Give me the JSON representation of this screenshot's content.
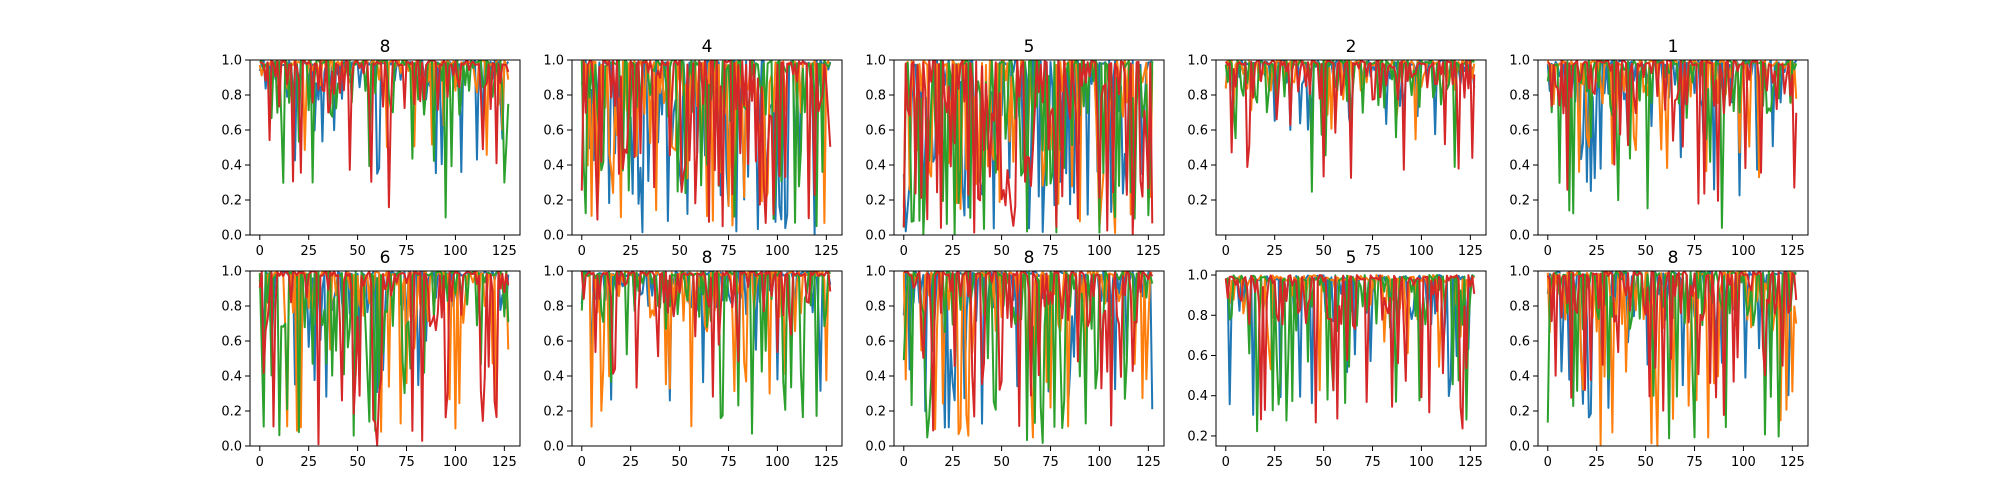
{
  "chart_data": {
    "type": "line",
    "layout": {
      "rows": 2,
      "cols": 5
    },
    "colors": [
      "#1f77b4",
      "#ff7f0e",
      "#2ca02c",
      "#d62728"
    ],
    "x_count": 128,
    "xlim": [
      -5,
      133
    ],
    "x_ticks": [
      0,
      25,
      50,
      75,
      100,
      125
    ],
    "panels": [
      {
        "title": "8",
        "ylim": [
          0.0,
          1.0
        ],
        "y_ticks": [
          0.0,
          0.2,
          0.4,
          0.6,
          0.8,
          1.0
        ],
        "y_tick_labels": [
          "0.0",
          "0.2",
          "0.4",
          "0.6",
          "0.8",
          "1.0"
        ],
        "series_min": [
          0.35,
          0.45,
          0.03,
          0.13
        ],
        "deep_rate": [
          0.08,
          0.08,
          0.12,
          0.06
        ],
        "seed": 11
      },
      {
        "title": "4",
        "ylim": [
          0.0,
          1.0
        ],
        "y_ticks": [
          0.0,
          0.2,
          0.4,
          0.6,
          0.8,
          1.0
        ],
        "y_tick_labels": [
          "0.0",
          "0.2",
          "0.4",
          "0.6",
          "0.8",
          "1.0"
        ],
        "series_min": [
          0.0,
          0.05,
          0.0,
          0.05
        ],
        "deep_rate": [
          0.22,
          0.25,
          0.22,
          0.3
        ],
        "seed": 23
      },
      {
        "title": "5",
        "ylim": [
          0.0,
          1.0
        ],
        "y_ticks": [
          0.0,
          0.2,
          0.4,
          0.6,
          0.8,
          1.0
        ],
        "y_tick_labels": [
          "0.0",
          "0.2",
          "0.4",
          "0.6",
          "0.8",
          "1.0"
        ],
        "series_min": [
          0.0,
          0.0,
          0.0,
          0.0
        ],
        "deep_rate": [
          0.3,
          0.3,
          0.3,
          0.38
        ],
        "seed": 37
      },
      {
        "title": "2",
        "ylim": [
          0.0,
          1.0
        ],
        "y_ticks": [
          0.2,
          0.4,
          0.6,
          0.8,
          1.0
        ],
        "y_tick_labels": [
          "0.2",
          "0.4",
          "0.6",
          "0.8",
          "1.0"
        ],
        "series_min": [
          0.55,
          0.5,
          0.12,
          0.3
        ],
        "deep_rate": [
          0.08,
          0.08,
          0.12,
          0.07
        ],
        "seed": 41
      },
      {
        "title": "1",
        "ylim": [
          0.0,
          1.0
        ],
        "y_ticks": [
          0.0,
          0.2,
          0.4,
          0.6,
          0.8,
          1.0
        ],
        "y_tick_labels": [
          "0.0",
          "0.2",
          "0.4",
          "0.6",
          "0.8",
          "1.0"
        ],
        "series_min": [
          0.2,
          0.25,
          0.03,
          0.12
        ],
        "deep_rate": [
          0.1,
          0.1,
          0.08,
          0.1
        ],
        "seed": 53
      },
      {
        "title": "6",
        "ylim": [
          0.0,
          1.0
        ],
        "y_ticks": [
          0.0,
          0.2,
          0.4,
          0.6,
          0.8,
          1.0
        ],
        "y_tick_labels": [
          "0.0",
          "0.2",
          "0.4",
          "0.6",
          "0.8",
          "1.0"
        ],
        "series_min": [
          0.25,
          0.08,
          0.05,
          0.0
        ],
        "deep_rate": [
          0.12,
          0.12,
          0.15,
          0.16
        ],
        "seed": 67
      },
      {
        "title": "8",
        "ylim": [
          0.0,
          1.0
        ],
        "y_ticks": [
          0.0,
          0.2,
          0.4,
          0.6,
          0.8,
          1.0
        ],
        "y_tick_labels": [
          "0.0",
          "0.2",
          "0.4",
          "0.6",
          "0.8",
          "1.0"
        ],
        "series_min": [
          0.25,
          0.0,
          0.05,
          0.25
        ],
        "deep_rate": [
          0.08,
          0.1,
          0.12,
          0.1
        ],
        "seed": 71
      },
      {
        "title": "8",
        "ylim": [
          0.0,
          1.0
        ],
        "y_ticks": [
          0.0,
          0.2,
          0.4,
          0.6,
          0.8,
          1.0
        ],
        "y_tick_labels": [
          "0.0",
          "0.2",
          "0.4",
          "0.6",
          "0.8",
          "1.0"
        ],
        "series_min": [
          0.1,
          0.0,
          0.0,
          0.05
        ],
        "deep_rate": [
          0.14,
          0.14,
          0.2,
          0.16
        ],
        "seed": 83
      },
      {
        "title": "5",
        "ylim": [
          0.15,
          1.02
        ],
        "y_ticks": [
          0.2,
          0.4,
          0.6,
          0.8,
          1.0
        ],
        "y_tick_labels": [
          "0.2",
          "0.4",
          "0.6",
          "0.8",
          "1.0"
        ],
        "series_min": [
          0.3,
          0.35,
          0.18,
          0.22
        ],
        "deep_rate": [
          0.1,
          0.1,
          0.12,
          0.16
        ],
        "seed": 97
      },
      {
        "title": "8",
        "ylim": [
          0.0,
          1.0
        ],
        "y_ticks": [
          0.0,
          0.2,
          0.4,
          0.6,
          0.8,
          1.0
        ],
        "y_tick_labels": [
          "0.0",
          "0.2",
          "0.4",
          "0.6",
          "0.8",
          "1.0"
        ],
        "series_min": [
          0.15,
          0.0,
          0.02,
          0.15
        ],
        "deep_rate": [
          0.14,
          0.14,
          0.14,
          0.18
        ],
        "seed": 101
      }
    ]
  }
}
